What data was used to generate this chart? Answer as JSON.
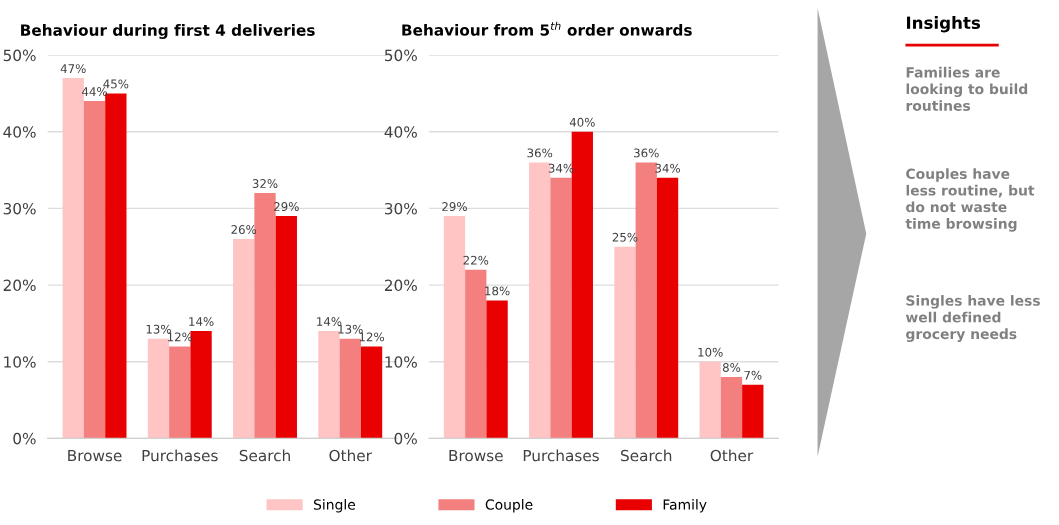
{
  "chart_data": [
    {
      "type": "bar",
      "title": "Behaviour during first 4 deliveries",
      "categories": [
        "Browse",
        "Purchases",
        "Search",
        "Other"
      ],
      "series": [
        {
          "name": "Single",
          "color": "#ffc4c4",
          "values": [
            47,
            13,
            26,
            14
          ],
          "value_labels": [
            "47%",
            "13%",
            "26%",
            "14%"
          ]
        },
        {
          "name": "Couple",
          "color": "#f47f7f",
          "values": [
            44,
            12,
            32,
            13
          ],
          "value_labels": [
            "44%",
            "12%",
            "32%",
            "13%"
          ]
        },
        {
          "name": "Family",
          "color": "#e90000",
          "values": [
            45,
            14,
            29,
            12
          ],
          "value_labels": [
            "45%",
            "14%",
            "29%",
            "12%"
          ]
        }
      ],
      "ylim": [
        0,
        50
      ],
      "yticks": [
        {
          "value": 0,
          "label": "0%"
        },
        {
          "value": 10,
          "label": "10%"
        },
        {
          "value": 20,
          "label": "20%"
        },
        {
          "value": 30,
          "label": "30%"
        },
        {
          "value": 40,
          "label": "40%"
        },
        {
          "value": 50,
          "label": "50%"
        }
      ],
      "grid": "y",
      "legend": "bottom"
    },
    {
      "type": "bar",
      "title": "Behaviour from 5$^{th}$ order onwards",
      "categories": [
        "Browse",
        "Purchases",
        "Search",
        "Other"
      ],
      "series": [
        {
          "color": "#ffc4c4",
          "values": [
            29,
            36,
            25,
            10
          ],
          "value_labels": [
            "29%",
            "36%",
            "25%",
            "10%"
          ]
        },
        {
          "color": "#f47f7f",
          "values": [
            22,
            34,
            36,
            8
          ],
          "value_labels": [
            "22%",
            "34%",
            "36%",
            "8%"
          ]
        },
        {
          "color": "#e90000",
          "values": [
            18,
            40,
            34,
            7
          ],
          "value_labels": [
            "18%",
            "40%",
            "34%",
            "7%"
          ]
        }
      ],
      "ylim": [
        0,
        50
      ],
      "yticks": [
        {
          "value": 0,
          "label": "0%"
        },
        {
          "value": 10,
          "label": "10%"
        },
        {
          "value": 20,
          "label": "20%"
        },
        {
          "value": 30,
          "label": "30%"
        },
        {
          "value": 40,
          "label": "40%"
        },
        {
          "value": 50,
          "label": "50%"
        }
      ],
      "grid": "y"
    },
    {
      "type": "other",
      "title": "Insights",
      "annotations": [
        "Families are looking to build routines",
        "Couples have less routine, but do not waste time browsing",
        "Singles have less well defined grocery needs"
      ]
    }
  ]
}
